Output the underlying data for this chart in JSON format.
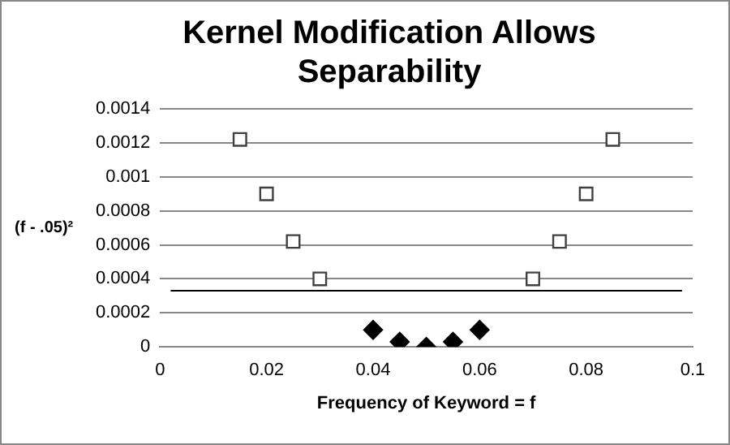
{
  "chart_data": {
    "type": "scatter",
    "title": "Kernel Modification Allows Separability",
    "xlabel": "Frequency of Keyword = f",
    "ylabel": "(f - .05)²",
    "xlim": [
      0,
      0.1
    ],
    "xticks": [
      0,
      0.02,
      0.04,
      0.06,
      0.08,
      0.1
    ],
    "ylim": [
      0,
      0.0014
    ],
    "yticks": [
      0,
      0.0002,
      0.0004,
      0.0006,
      0.0008,
      0.001,
      0.0012,
      0.0014
    ],
    "grid": "y",
    "legend": false,
    "series": [
      {
        "color": "#404040",
        "marker": "square",
        "x": [
          0.015,
          0.02,
          0.025,
          0.03,
          0.07,
          0.075,
          0.08,
          0.085
        ],
        "values": [
          0.00122,
          0.0009,
          0.00062,
          0.0004,
          0.0004,
          0.00062,
          0.0009,
          0.00122
        ]
      },
      {
        "color": "#000000",
        "marker": "diamond",
        "x": [
          0.04,
          0.045,
          0.05,
          0.055,
          0.06
        ],
        "values": [
          0.0001,
          3e-05,
          0,
          3e-05,
          0.0001
        ]
      },
      {
        "type": "line",
        "color": "#000000",
        "marker": "none",
        "line_style": "solid",
        "x": [
          0.002,
          0.098
        ],
        "values": [
          0.00033,
          0.00033
        ]
      }
    ]
  }
}
